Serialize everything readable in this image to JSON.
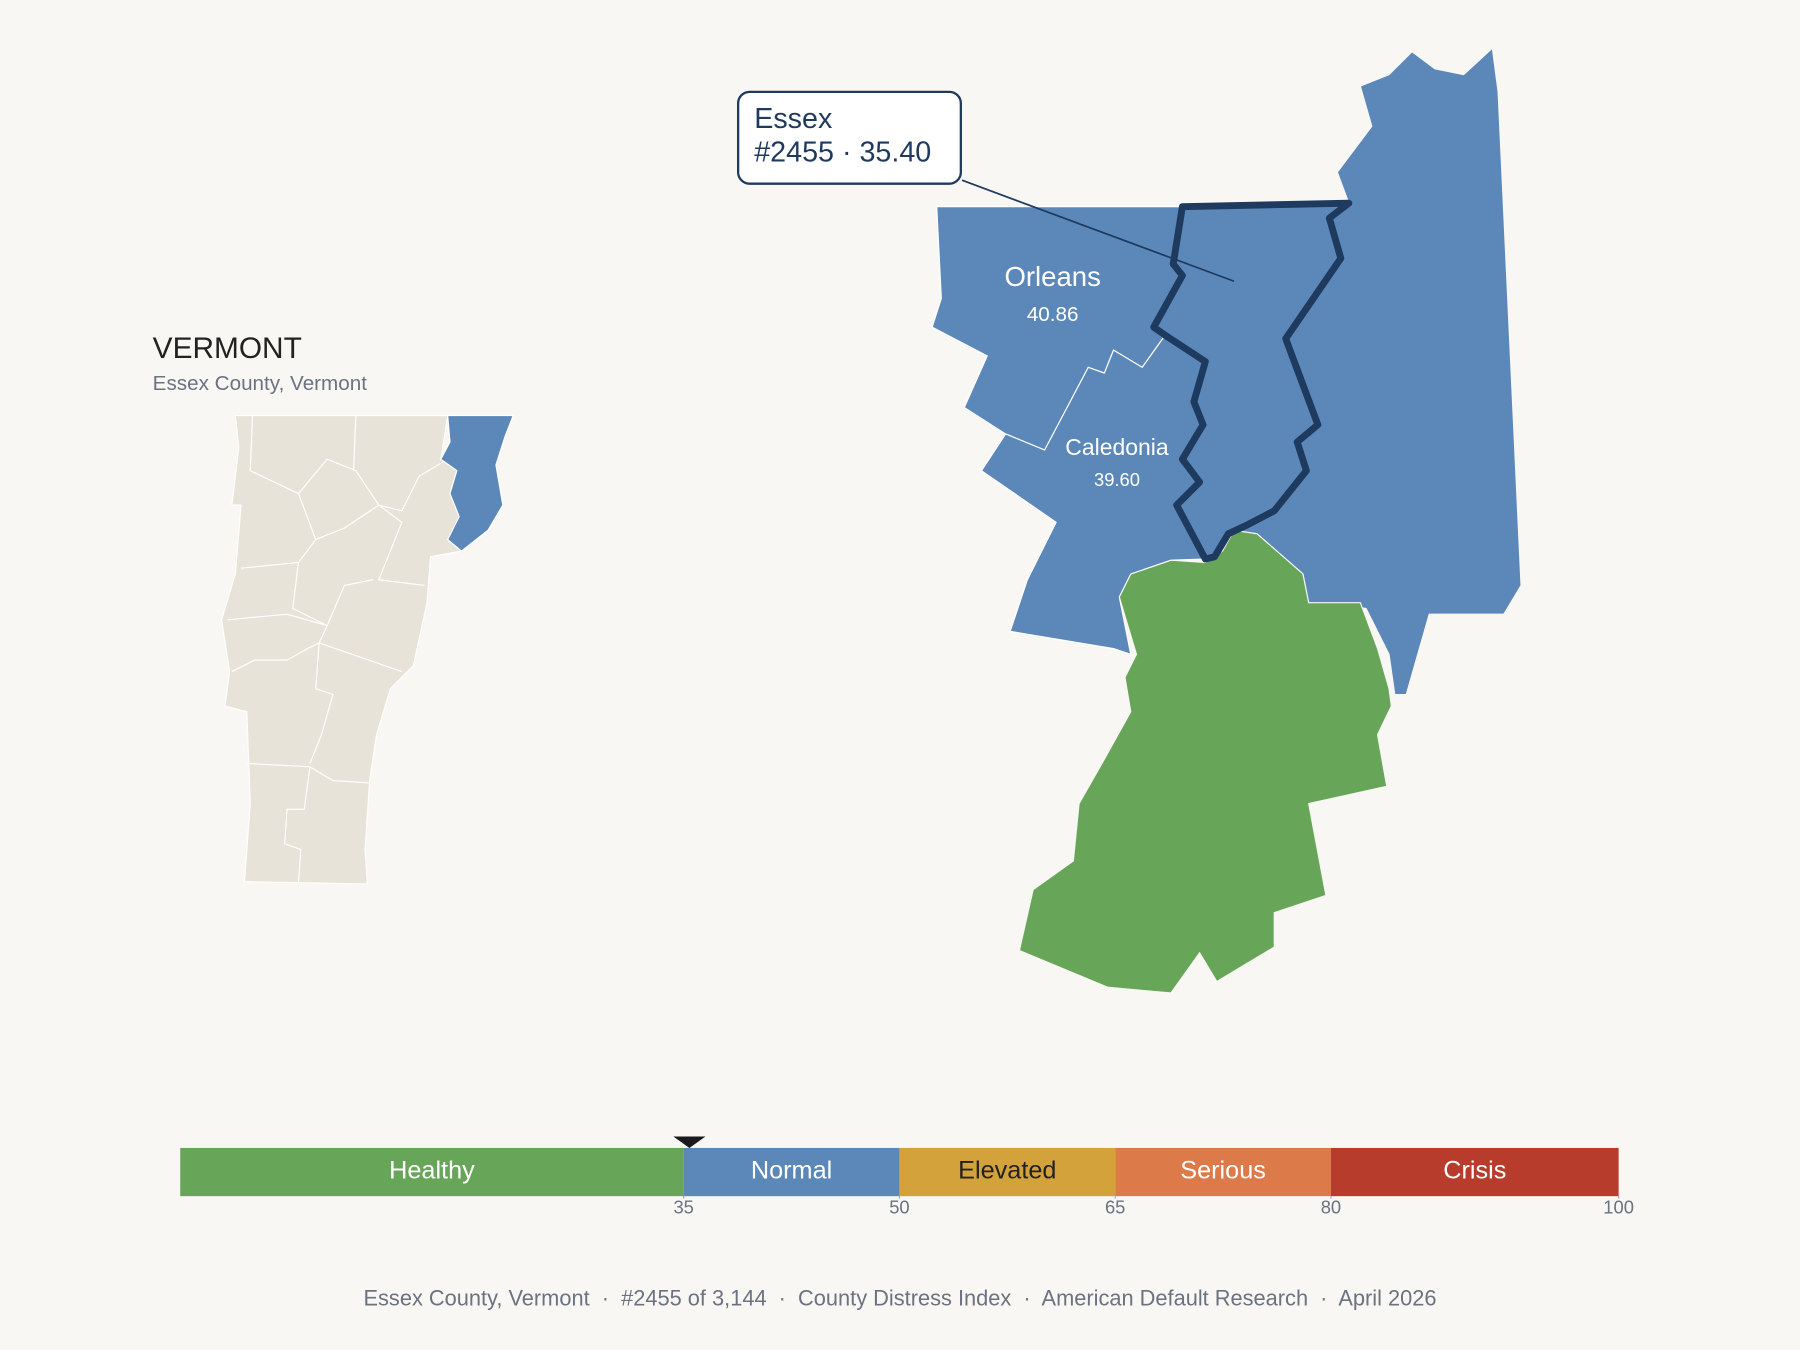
{
  "title": "VERMONT",
  "subtitle": "Essex County, Vermont",
  "map": {
    "counties": [
      {
        "name": "Orleans",
        "score": "40.86",
        "color": "#5b88b8"
      },
      {
        "name": "Caledonia",
        "score": "39.60",
        "color": "#5b88b8"
      }
    ],
    "highlight": {
      "name": "Essex",
      "label": "#2455 · 35.40",
      "color": "#5b88b8",
      "outline": "#1f3a5f"
    },
    "neighbors": [
      {
        "color": "#5b88b8"
      },
      {
        "color": "#67a659"
      }
    ],
    "state_color": "#e8e3d9"
  },
  "scale": {
    "range": [
      0,
      100
    ],
    "ticks": [
      35,
      50,
      65,
      80,
      100
    ],
    "marker": 35.4,
    "bands": [
      {
        "name": "Healthy",
        "color": "#67a659",
        "text_color": "#ffffff"
      },
      {
        "name": "Normal",
        "color": "#5b88b8",
        "text_color": "#ffffff"
      },
      {
        "name": "Elevated",
        "color": "#d4a23a",
        "text_color": "#222222"
      },
      {
        "name": "Serious",
        "color": "#dc7a49",
        "text_color": "#ffffff"
      },
      {
        "name": "Crisis",
        "color": "#b83c2c",
        "text_color": "#ffffff"
      }
    ]
  },
  "footer": "Essex County, Vermont  ·  #2455 of 3,144  ·  County Distress Index  ·  American Default Research  ·  April 2026"
}
